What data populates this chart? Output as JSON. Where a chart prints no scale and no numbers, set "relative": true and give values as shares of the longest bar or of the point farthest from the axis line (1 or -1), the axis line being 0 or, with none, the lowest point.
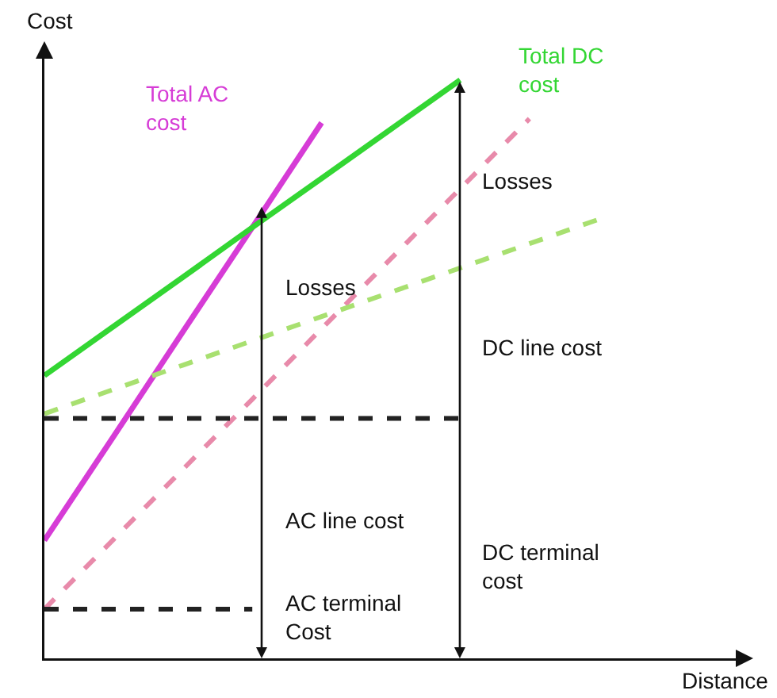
{
  "chart_data": {
    "type": "line",
    "relative": true,
    "xlabel": "Distance",
    "ylabel": "Cost",
    "categories": [
      null,
      null,
      null,
      null,
      null,
      null,
      null,
      null,
      null,
      null,
      null
    ],
    "series": [
      {
        "name": "Total AC cost",
        "color": "#d63cd6",
        "line_style": "solid",
        "values": [
          0.204,
          0.384,
          0.565,
          0.745,
          0.926,
          null,
          null,
          null,
          null,
          null,
          null
        ]
      },
      {
        "name": "Total DC cost",
        "color": "#33d633",
        "line_style": "solid",
        "values": [
          0.489,
          0.574,
          0.659,
          0.745,
          0.83,
          0.915,
          1,
          null,
          null,
          null,
          null
        ]
      },
      {
        "color": "#e88aaa",
        "line_style": "dashed",
        "values": [
          0.085,
          0.206,
          0.327,
          0.448,
          0.57,
          0.691,
          0.812,
          0.933,
          null,
          null,
          null
        ]
      },
      {
        "color": "#a8e070",
        "line_style": "dashed",
        "values": [
          0.423,
          0.465,
          0.507,
          0.549,
          0.591,
          0.633,
          0.675,
          0.717,
          0.759,
          null,
          null
        ]
      },
      {
        "color": "#222222",
        "line_style": "dashed",
        "values": [
          0.415,
          0.415,
          0.415,
          0.415,
          0.415,
          0.415,
          0.415,
          null,
          null,
          null,
          null
        ]
      },
      {
        "color": "#222222",
        "line_style": "dashed",
        "values": [
          0.085,
          0.085,
          0.085,
          0.085,
          null,
          null,
          null,
          null,
          null,
          null,
          null
        ]
      }
    ],
    "annotations": [
      "Losses",
      "AC line cost",
      "AC terminal Cost",
      "Losses",
      "DC line cost",
      "DC terminal cost"
    ],
    "marker": "none",
    "grid": false,
    "legend": false
  }
}
